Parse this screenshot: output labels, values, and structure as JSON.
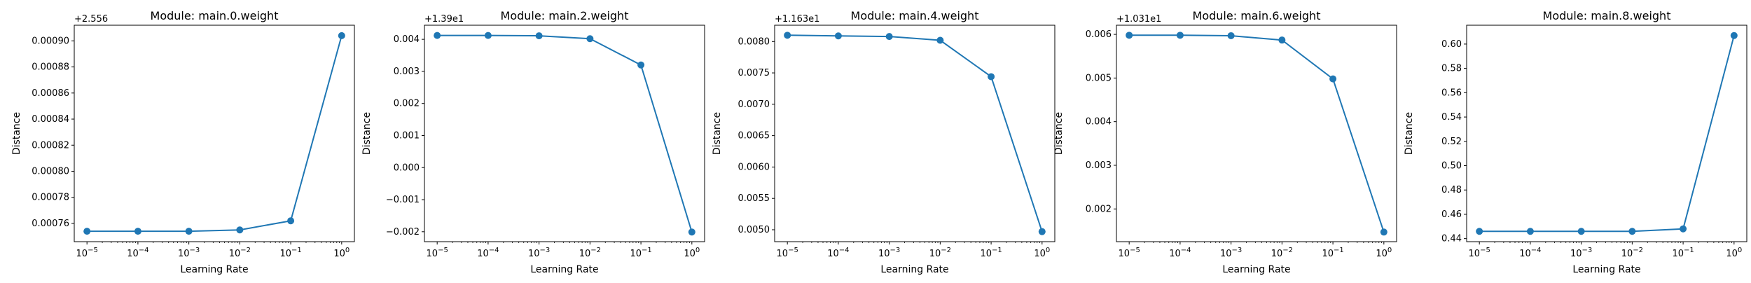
{
  "chart_data": [
    {
      "type": "line",
      "title": "Module: main.0.weight",
      "xlabel": "Learning Rate",
      "ylabel": "Distance",
      "x_scale": "log",
      "x": [
        1e-05,
        0.0001,
        0.001,
        0.01,
        0.1,
        1
      ],
      "x_ticks": [
        {
          "base": "10",
          "exp": "−5"
        },
        {
          "base": "10",
          "exp": "−4"
        },
        {
          "base": "10",
          "exp": "−3"
        },
        {
          "base": "10",
          "exp": "−2"
        },
        {
          "base": "10",
          "exp": "−1"
        },
        {
          "base": "10",
          "exp": "0"
        }
      ],
      "offset_text": "+2.556",
      "y_ticks": [
        0.00076,
        0.00078,
        0.0008,
        0.00082,
        0.00084,
        0.00086,
        0.00088,
        0.0009
      ],
      "y_tick_labels": [
        "0.00076",
        "0.00078",
        "0.00080",
        "0.00082",
        "0.00084",
        "0.00086",
        "0.00088",
        "0.00090"
      ],
      "ylim": [
        0.000746,
        0.000912
      ],
      "series": [
        {
          "values": [
            0.000754,
            0.000754,
            0.000754,
            0.000755,
            0.000762,
            0.000904
          ]
        }
      ],
      "color": "#1f77b4",
      "grid": false,
      "legend": false
    },
    {
      "type": "line",
      "title": "Module: main.2.weight",
      "xlabel": "Learning Rate",
      "ylabel": "Distance",
      "x_scale": "log",
      "x": [
        1e-05,
        0.0001,
        0.001,
        0.01,
        0.1,
        1
      ],
      "x_ticks": [
        {
          "base": "10",
          "exp": "−5"
        },
        {
          "base": "10",
          "exp": "−4"
        },
        {
          "base": "10",
          "exp": "−3"
        },
        {
          "base": "10",
          "exp": "−2"
        },
        {
          "base": "10",
          "exp": "−1"
        },
        {
          "base": "10",
          "exp": "0"
        }
      ],
      "offset_text": "+1.39e1",
      "y_ticks": [
        -0.002,
        -0.001,
        0.0,
        0.001,
        0.002,
        0.003,
        0.004
      ],
      "y_tick_labels": [
        "−0.002",
        "−0.001",
        "0.000",
        "0.001",
        "0.002",
        "0.003",
        "0.004"
      ],
      "ylim": [
        -0.00231,
        0.00444
      ],
      "series": [
        {
          "values": [
            0.00412,
            0.00412,
            0.00411,
            0.00402,
            0.0032,
            -0.00201
          ]
        }
      ],
      "color": "#1f77b4",
      "grid": false,
      "legend": false
    },
    {
      "type": "line",
      "title": "Module: main.4.weight",
      "xlabel": "Learning Rate",
      "ylabel": "Distance",
      "x_scale": "log",
      "x": [
        1e-05,
        0.0001,
        0.001,
        0.01,
        0.1,
        1
      ],
      "x_ticks": [
        {
          "base": "10",
          "exp": "−5"
        },
        {
          "base": "10",
          "exp": "−4"
        },
        {
          "base": "10",
          "exp": "−3"
        },
        {
          "base": "10",
          "exp": "−2"
        },
        {
          "base": "10",
          "exp": "−1"
        },
        {
          "base": "10",
          "exp": "0"
        }
      ],
      "offset_text": "+1.163e1",
      "y_ticks": [
        0.005,
        0.0055,
        0.006,
        0.0065,
        0.007,
        0.0075,
        0.008
      ],
      "y_tick_labels": [
        "0.0050",
        "0.0055",
        "0.0060",
        "0.0065",
        "0.0070",
        "0.0075",
        "0.0080"
      ],
      "ylim": [
        0.00481,
        0.00826
      ],
      "series": [
        {
          "values": [
            0.0081,
            0.00809,
            0.00808,
            0.00802,
            0.00744,
            0.00497
          ]
        }
      ],
      "color": "#1f77b4",
      "grid": false,
      "legend": false
    },
    {
      "type": "line",
      "title": "Module: main.6.weight",
      "xlabel": "Learning Rate",
      "ylabel": "Distance",
      "x_scale": "log",
      "x": [
        1e-05,
        0.0001,
        0.001,
        0.01,
        0.1,
        1
      ],
      "x_ticks": [
        {
          "base": "10",
          "exp": "−5"
        },
        {
          "base": "10",
          "exp": "−4"
        },
        {
          "base": "10",
          "exp": "−3"
        },
        {
          "base": "10",
          "exp": "−2"
        },
        {
          "base": "10",
          "exp": "−1"
        },
        {
          "base": "10",
          "exp": "0"
        }
      ],
      "offset_text": "+1.031e1",
      "y_ticks": [
        0.002,
        0.003,
        0.004,
        0.005,
        0.006
      ],
      "y_tick_labels": [
        "0.002",
        "0.003",
        "0.004",
        "0.005",
        "0.006"
      ],
      "ylim": [
        0.00125,
        0.00621
      ],
      "series": [
        {
          "values": [
            0.00598,
            0.00598,
            0.00597,
            0.00587,
            0.00498,
            0.00147
          ]
        }
      ],
      "color": "#1f77b4",
      "grid": false,
      "legend": false
    },
    {
      "type": "line",
      "title": "Module: main.8.weight",
      "xlabel": "Learning Rate",
      "ylabel": "Distance",
      "x_scale": "log",
      "x": [
        1e-05,
        0.0001,
        0.001,
        0.01,
        0.1,
        1
      ],
      "x_ticks": [
        {
          "base": "10",
          "exp": "−5"
        },
        {
          "base": "10",
          "exp": "−4"
        },
        {
          "base": "10",
          "exp": "−3"
        },
        {
          "base": "10",
          "exp": "−2"
        },
        {
          "base": "10",
          "exp": "−1"
        },
        {
          "base": "10",
          "exp": "0"
        }
      ],
      "offset_text": "",
      "y_ticks": [
        0.44,
        0.46,
        0.48,
        0.5,
        0.52,
        0.54,
        0.56,
        0.58,
        0.6
      ],
      "y_tick_labels": [
        "0.44",
        "0.46",
        "0.48",
        "0.50",
        "0.52",
        "0.54",
        "0.56",
        "0.58",
        "0.60"
      ],
      "ylim": [
        0.4375,
        0.6155
      ],
      "series": [
        {
          "values": [
            0.446,
            0.446,
            0.446,
            0.446,
            0.448,
            0.607
          ]
        }
      ],
      "color": "#1f77b4",
      "grid": false,
      "legend": false
    }
  ]
}
